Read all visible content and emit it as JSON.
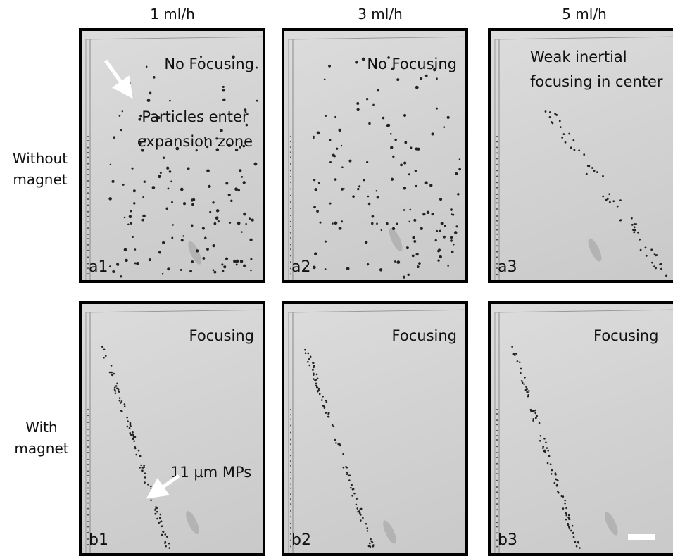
{
  "columns": [
    "1 ml/h",
    "3 ml/h",
    "5 ml/h"
  ],
  "rows": [
    "Without magnet",
    "With magnet"
  ],
  "panels": [
    {
      "label": "a1",
      "notes": [
        "No Focusing",
        "Particles enter expansion zone"
      ]
    },
    {
      "label": "a2",
      "notes": [
        "No Focusing"
      ]
    },
    {
      "label": "a3",
      "notes": [
        "Weak inertial focusing in center"
      ]
    },
    {
      "label": "b1",
      "notes": [
        "Focusing",
        "11 µm MPs"
      ]
    },
    {
      "label": "b2",
      "notes": [
        "Focusing"
      ]
    },
    {
      "label": "b3",
      "notes": [
        "Focusing"
      ]
    }
  ]
}
